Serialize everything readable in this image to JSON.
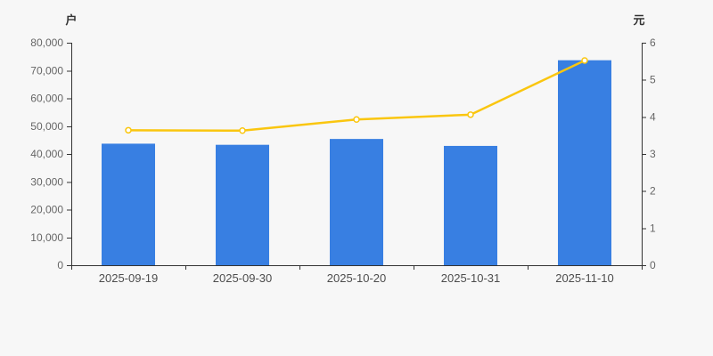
{
  "page": {
    "background_color": "#f7f7f7"
  },
  "chart_data": {
    "type": "combo",
    "subtype": "bar+line",
    "categories": [
      "2025-09-19",
      "2025-09-30",
      "2025-10-20",
      "2025-10-31",
      "2025-11-10"
    ],
    "series": [
      {
        "id": "bars",
        "type": "bar",
        "axis": "left",
        "color": "#387fe2",
        "values": [
          43700,
          43300,
          45400,
          42900,
          73700
        ]
      },
      {
        "id": "line",
        "type": "line",
        "axis": "right",
        "color": "#fac60f",
        "marker": "empty-circle",
        "marker_fill": "#ffffff",
        "values": [
          3.64,
          3.63,
          3.93,
          4.06,
          5.52
        ]
      }
    ],
    "left_axis": {
      "unit": "户",
      "min": 0,
      "max": 80000,
      "step": 10000,
      "tick_labels": [
        "0",
        "10,000",
        "20,000",
        "30,000",
        "40,000",
        "50,000",
        "60,000",
        "70,000",
        "80,000"
      ]
    },
    "right_axis": {
      "unit": "元",
      "min": 0,
      "max": 6,
      "step": 1,
      "tick_labels": [
        "0",
        "1",
        "2",
        "3",
        "4",
        "5",
        "6"
      ]
    },
    "grid": false,
    "legend": false,
    "title": "",
    "style": {
      "axis_line_color": "#333333",
      "y_tick_label_color": "#666666",
      "x_tick_label_color": "#4d4d4d",
      "unit_label_color": "#333333"
    }
  }
}
